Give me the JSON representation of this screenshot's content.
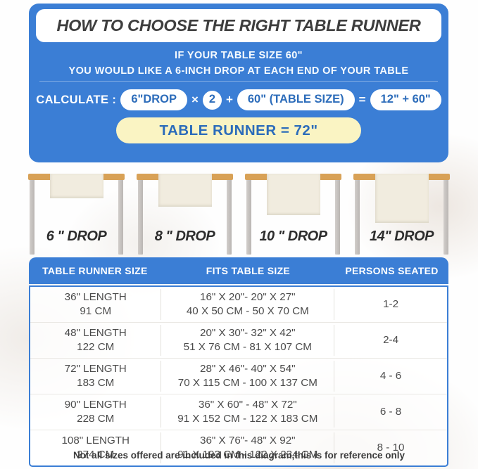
{
  "colors": {
    "brand_blue": "#3b7ed5",
    "pill_text_blue": "#2c6cba",
    "result_pill_bg": "#faf4c3",
    "tabletop_tan": "#d8a156",
    "runner_cream": "#f1ecdf",
    "leg_gray": "#c6c2bf",
    "body_text": "#4b4b4b",
    "title_text": "#3e3e3e"
  },
  "header": {
    "title": "HOW TO CHOOSE THE RIGHT TABLE RUNNER",
    "line1": "IF YOUR TABLE SIZE 60\"",
    "line2": "YOU WOULD LIKE A 6-INCH DROP AT EACH END OF YOUR TABLE",
    "calc": {
      "label": "CALCULATE :",
      "drop_pill": "6\"DROP",
      "times_sign": "×",
      "multiplier": "2",
      "plus_sign": "+",
      "table_size_pill": "60\" (TABLE SIZE)",
      "equals_sign": "=",
      "sum_pill": "12\" + 60\"",
      "result": "TABLE RUNNER = 72\""
    }
  },
  "drops": [
    {
      "label": "6 \" DROP",
      "drop_inches": 6
    },
    {
      "label": "8 \" DROP",
      "drop_inches": 8
    },
    {
      "label": "10 \" DROP",
      "drop_inches": 10
    },
    {
      "label": "14\" DROP",
      "drop_inches": 14
    }
  ],
  "table": {
    "headers": [
      "TABLE RUNNER SIZE",
      "FITS TABLE SIZE",
      "PERSONS SEATED"
    ],
    "rows": [
      {
        "runner_in": "36\" LENGTH",
        "runner_cm": "91 CM",
        "fits_in": "16\" X 20\"- 20\" X 27\"",
        "fits_cm": "40 X 50 CM - 50 X 70 CM",
        "persons": "1-2"
      },
      {
        "runner_in": "48\" LENGTH",
        "runner_cm": "122 CM",
        "fits_in": "20\" X 30\"- 32\" X 42\"",
        "fits_cm": "51 X 76 CM - 81 X 107 CM",
        "persons": "2-4"
      },
      {
        "runner_in": "72\" LENGTH",
        "runner_cm": "183 CM",
        "fits_in": "28\" X 46\"- 40\" X 54\"",
        "fits_cm": "70 X 115 CM - 100 X 137 CM",
        "persons": "4 - 6"
      },
      {
        "runner_in": "90\" LENGTH",
        "runner_cm": "228 CM",
        "fits_in": "36\" X 60\" - 48\" X 72\"",
        "fits_cm": "91 X 152 CM - 122 X 183 CM",
        "persons": "6 - 8"
      },
      {
        "runner_in": "108\" LENGTH",
        "runner_cm": "274 CM",
        "fits_in": "36\" X 76\"- 48\" X 92\"",
        "fits_cm": "91 X 193 CM - 122 X 234 CM",
        "persons": "8 - 10"
      }
    ]
  },
  "footer": {
    "note": "Not all sizes offered are included in this diagram,this is for reference only"
  }
}
